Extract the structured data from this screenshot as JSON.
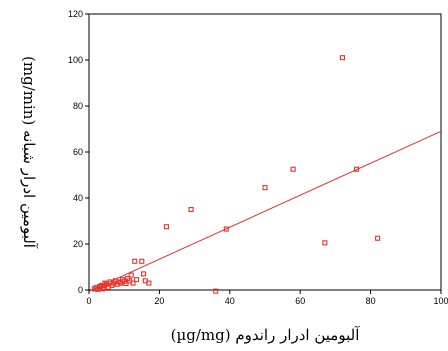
{
  "chart_data": {
    "type": "scatter",
    "xlabel": "آلبومین ادرار راندوم (µg/mg)",
    "ylabel": "آلبومین ادرار شبانه (mg/min)",
    "xlim": [
      0,
      100
    ],
    "ylim": [
      0,
      120
    ],
    "x_ticks": [
      0,
      20,
      40,
      60,
      80,
      100
    ],
    "y_ticks": [
      0,
      20,
      40,
      60,
      80,
      100,
      120
    ],
    "x_tick_labels": [
      "0",
      "20",
      "40",
      "60",
      "80",
      "100"
    ],
    "y_tick_labels": [
      "0",
      "20",
      "40",
      "60",
      "80",
      "100",
      "120"
    ],
    "grid": false,
    "marker_color": "#e8322a",
    "line_color": "#e8322a",
    "series": [
      {
        "points": [
          [
            1.5,
            0.5
          ],
          [
            2.0,
            1.0
          ],
          [
            2.5,
            0.3
          ],
          [
            3.0,
            1.5
          ],
          [
            3.2,
            0.8
          ],
          [
            3.5,
            2.0
          ],
          [
            4.0,
            0.5
          ],
          [
            4.2,
            1.8
          ],
          [
            4.5,
            3.0
          ],
          [
            5.0,
            2.5
          ],
          [
            5.5,
            1.2
          ],
          [
            6.0,
            3.5
          ],
          [
            6.5,
            2.0
          ],
          [
            7.0,
            3.0
          ],
          [
            7.5,
            4.0
          ],
          [
            8.0,
            2.5
          ],
          [
            8.5,
            3.5
          ],
          [
            9.0,
            3.0
          ],
          [
            9.5,
            4.5
          ],
          [
            10.0,
            3.8
          ],
          [
            10.5,
            2.8
          ],
          [
            11.0,
            5.0
          ],
          [
            11.5,
            4.0
          ],
          [
            12.0,
            6.5
          ],
          [
            12.5,
            3.0
          ],
          [
            13.0,
            12.5
          ],
          [
            13.5,
            4.5
          ],
          [
            15.0,
            12.5
          ],
          [
            15.5,
            7.0
          ],
          [
            16.0,
            4.0
          ],
          [
            17.0,
            3.0
          ],
          [
            22.0,
            27.5
          ],
          [
            29.0,
            35.0
          ],
          [
            36.0,
            -0.5
          ],
          [
            39.0,
            26.5
          ],
          [
            50.0,
            44.5
          ],
          [
            58.0,
            52.5
          ],
          [
            67.0,
            20.5
          ],
          [
            72.0,
            101.0
          ],
          [
            76.0,
            52.5
          ],
          [
            82.0,
            22.5
          ]
        ]
      }
    ],
    "fit_line": {
      "type": "linear",
      "x": [
        0,
        100
      ],
      "y": [
        -0.5,
        69.0
      ]
    }
  }
}
